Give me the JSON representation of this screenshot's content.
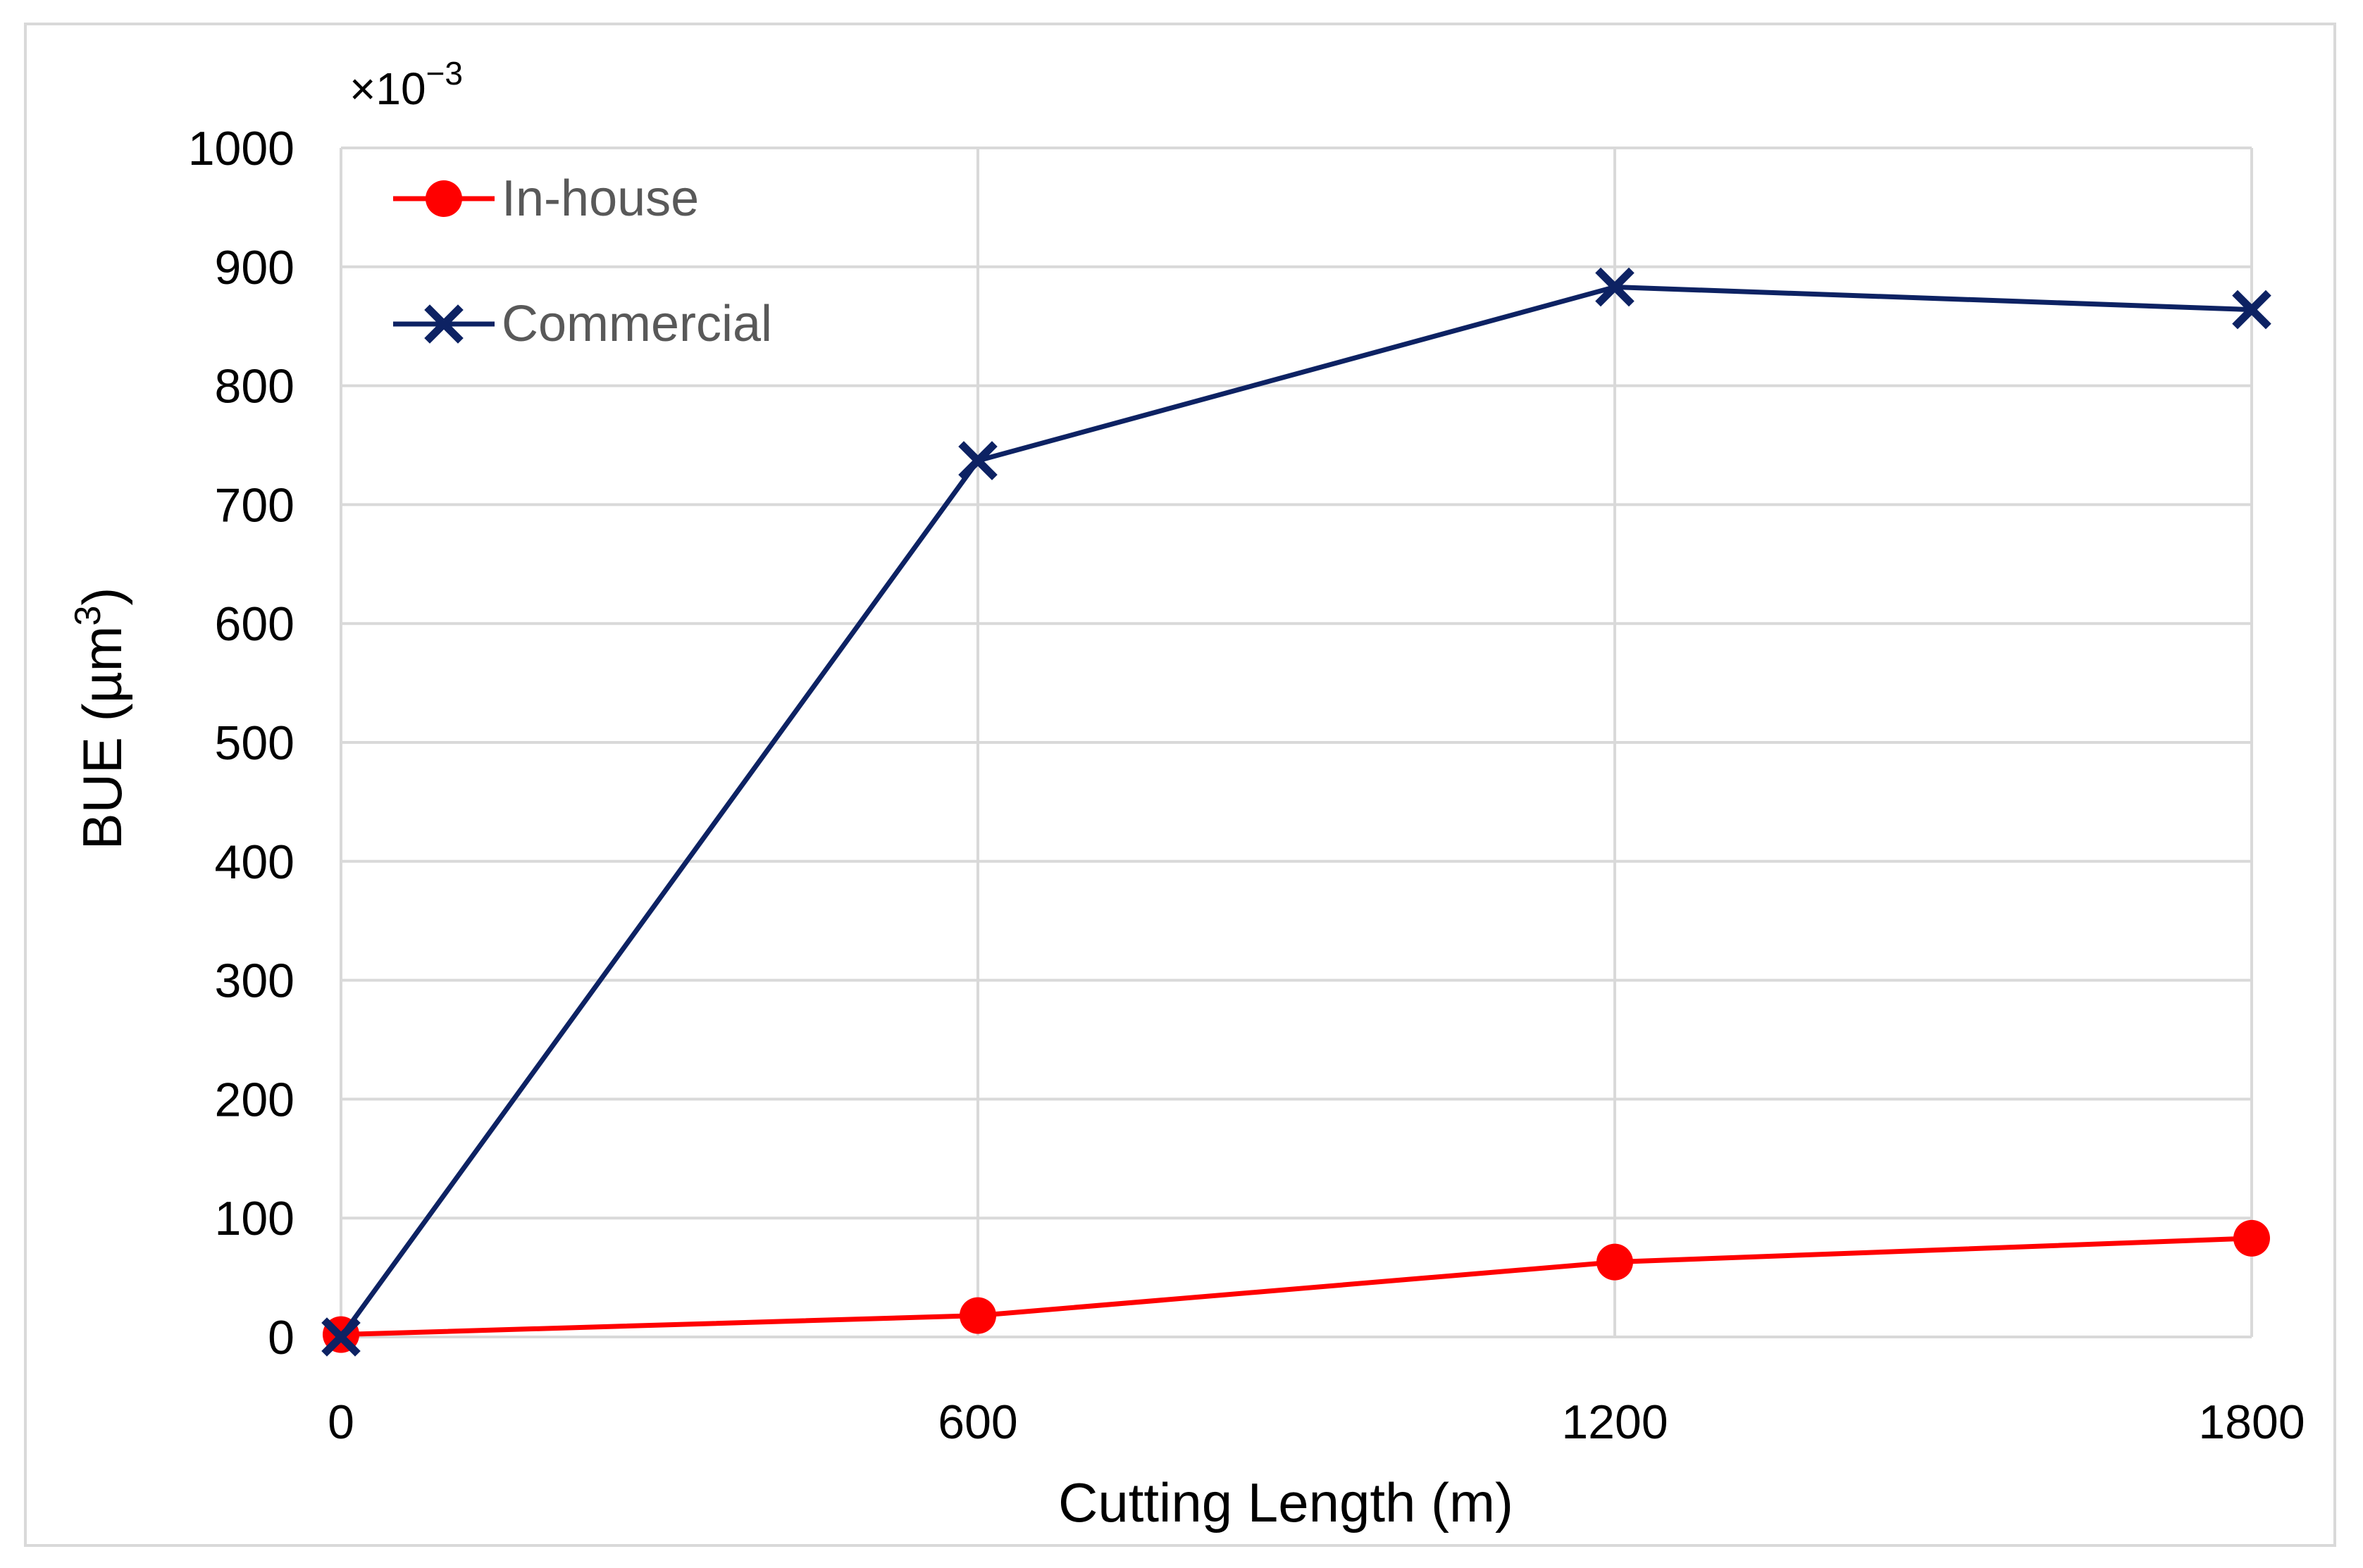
{
  "chart_data": {
    "type": "line",
    "title": "",
    "xlabel": "Cutting Length (m)",
    "ylabel": {
      "main": "BUE (µm",
      "sup": "3",
      "end": ")"
    },
    "scale_factor": {
      "base": "×10",
      "exponent": "−3"
    },
    "x": [
      0,
      600,
      1200,
      1800
    ],
    "x_ticks": [
      "0",
      "600",
      "1200",
      "1800"
    ],
    "y_ticks": [
      "0",
      "100",
      "200",
      "300",
      "400",
      "500",
      "600",
      "700",
      "800",
      "900",
      "1000"
    ],
    "ylim": [
      0,
      1000
    ],
    "grid": true,
    "legend_position": "top-left",
    "series": [
      {
        "name": "In-house",
        "color": "#ff0000",
        "marker": "circle",
        "values": [
          2,
          18,
          63,
          83
        ]
      },
      {
        "name": "Commercial",
        "color": "#0d2263",
        "marker": "x",
        "values": [
          0,
          737,
          883,
          864
        ]
      }
    ]
  }
}
